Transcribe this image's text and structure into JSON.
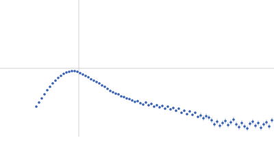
{
  "chart_data": {
    "type": "scatter",
    "color": "#3a64b4",
    "xlim": [
      0,
      400
    ],
    "ylim": [
      0,
      200
    ],
    "crosshair": {
      "x": 115,
      "y": 100,
      "color": "#d0d0d0"
    },
    "x": [
      53,
      57,
      61,
      65,
      69,
      73,
      77,
      81,
      85,
      89,
      93,
      97,
      101,
      105,
      109,
      113,
      117,
      121,
      125,
      129,
      133,
      137,
      141,
      145,
      149,
      153,
      157,
      161,
      165,
      169,
      173,
      177,
      181,
      185,
      189,
      193,
      197,
      201,
      205,
      209,
      213,
      217,
      221,
      225,
      229,
      233,
      237,
      241,
      245,
      249,
      253,
      257,
      261,
      265,
      269,
      273,
      277,
      281,
      285,
      289,
      293,
      297,
      301,
      305,
      309,
      313,
      317,
      321,
      325,
      329,
      333,
      337,
      341,
      345,
      349,
      353,
      357,
      361,
      365,
      369,
      373,
      377,
      381,
      385,
      389,
      393,
      397
    ],
    "values": [
      44,
      50,
      56,
      62,
      68,
      73,
      78,
      82,
      86,
      89,
      92,
      94,
      95,
      96,
      96,
      95,
      93,
      91,
      89,
      87,
      84,
      82,
      80,
      78,
      75,
      73,
      70,
      67,
      65,
      63,
      62,
      59,
      58,
      56,
      55,
      53,
      51,
      52,
      49,
      47,
      50,
      46,
      48,
      44,
      46,
      43,
      45,
      41,
      44,
      40,
      42,
      38,
      41,
      35,
      38,
      33,
      37,
      32,
      35,
      29,
      31,
      27,
      30,
      28,
      24,
      18,
      22,
      16,
      20,
      23,
      17,
      21,
      25,
      18,
      14,
      20,
      15,
      12,
      19,
      22,
      16,
      20,
      13,
      18,
      21,
      15,
      24
    ],
    "errors": [
      1,
      1,
      1,
      1,
      1,
      1,
      1,
      1,
      1,
      1,
      1,
      1,
      1,
      1,
      1,
      1,
      1,
      1,
      1,
      1,
      1,
      1,
      1,
      1,
      1,
      1,
      1,
      1,
      1,
      1,
      1,
      1,
      1,
      1,
      1,
      1,
      1,
      1,
      1,
      1,
      2,
      2,
      2,
      2,
      2,
      2,
      2,
      2,
      2,
      2,
      2,
      2,
      2,
      2,
      2,
      2,
      2,
      2,
      2,
      2,
      4,
      4,
      4,
      4,
      4,
      4,
      4,
      4,
      4,
      4,
      4,
      4,
      4,
      4,
      4,
      4,
      4,
      4,
      4,
      4,
      4,
      4,
      4,
      4,
      4,
      4,
      4
    ]
  }
}
